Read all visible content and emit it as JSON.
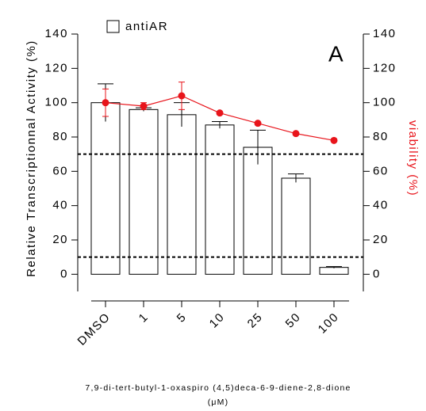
{
  "chart_data": {
    "type": "bar",
    "panel_label": "A",
    "y_label": "Relative Transcriptionnal Activity (%)",
    "y2_label": "viability (%)",
    "x_label": "7,9-di-tert-butyl-1-oxaspiro (4,5)deca-6-9-diene-2,8-dione",
    "x_unit": "(μM)",
    "categories": [
      "DMSO",
      "1",
      "5",
      "10",
      "25",
      "50",
      "100"
    ],
    "series": [
      {
        "name": "antiAR",
        "type": "bar",
        "color": "#ffffff",
        "values": [
          100,
          96,
          93,
          87,
          74,
          56,
          4
        ],
        "errors": [
          11,
          1,
          7,
          2,
          10,
          2.5,
          0.5
        ]
      },
      {
        "type": "line",
        "axis": "y2",
        "color": "#e8141b",
        "values": [
          100,
          98,
          104,
          94,
          88,
          82,
          78
        ],
        "errors": [
          8,
          2,
          8,
          0,
          0,
          0,
          0
        ]
      }
    ],
    "reference_lines": [
      70,
      10
    ],
    "ylim": [
      -10,
      140
    ],
    "yticks": [
      0,
      20,
      40,
      60,
      80,
      100,
      120,
      140
    ],
    "y2lim": [
      -10,
      140
    ],
    "y2ticks": [
      0,
      20,
      40,
      60,
      80,
      100,
      120,
      140
    ]
  }
}
